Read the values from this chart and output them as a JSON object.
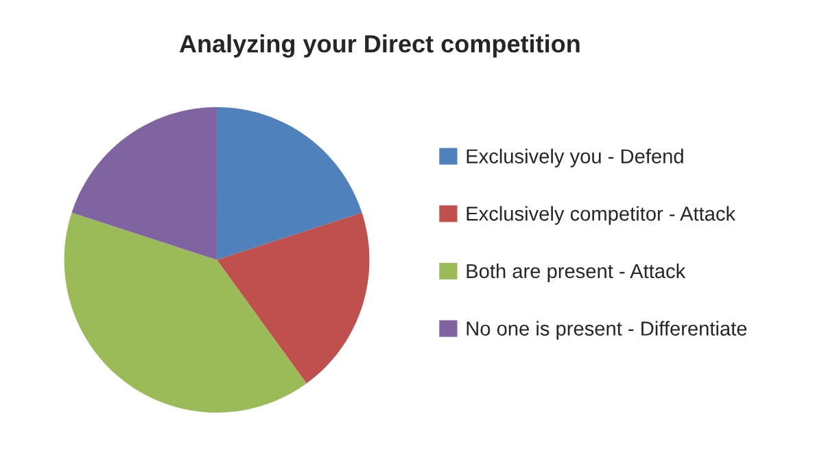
{
  "chart_data": {
    "type": "pie",
    "title": "Analyzing your Direct competition",
    "categories": [
      "Exclusively you - Defend",
      "Exclusively competitor - Attack",
      "Both are present - Attack",
      "No one is present - Differentiate"
    ],
    "values": [
      20,
      20,
      40,
      20
    ],
    "colors": [
      "#4f81bd",
      "#c0504d",
      "#9bbb59",
      "#8064a2"
    ],
    "legend": "right"
  }
}
